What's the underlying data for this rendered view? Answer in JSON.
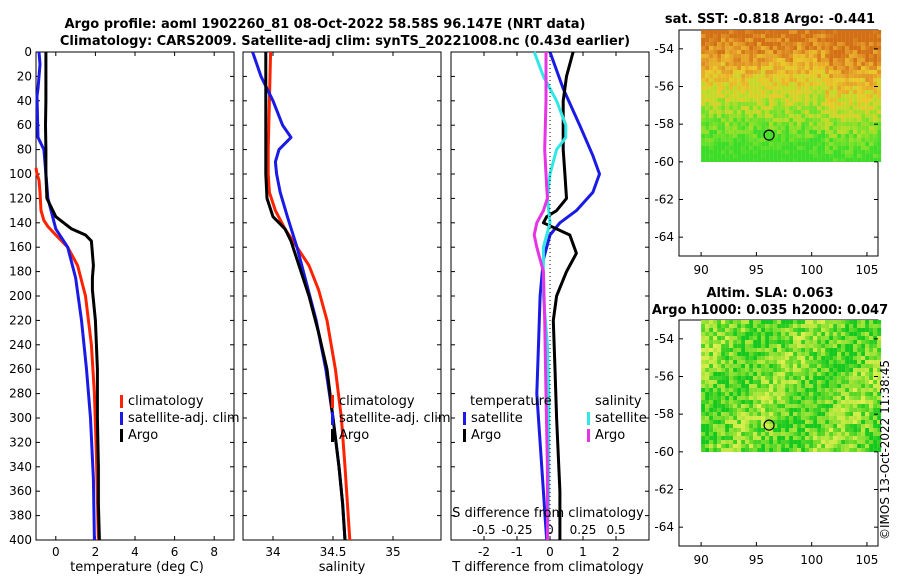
{
  "title": {
    "line1": "Argo profile: aoml 1902260_81 08-Oct-2022 58.58S 96.147E (NRT data)",
    "line2": "Climatology: CARS2009. Satellite-adj clim: synTS_20221008.nc (0.43d earlier)"
  },
  "colors": {
    "climatology": "#ff2200",
    "satellite": "#1a1ae6",
    "argo": "#000000",
    "salinity_sat": "#33e6e6",
    "salinity_argo": "#e633e6"
  },
  "chart_data": [
    {
      "id": "temperature",
      "type": "line",
      "xlabel": "temperature (deg C)",
      "ylabel": "",
      "xlim": [
        -1,
        9
      ],
      "ylim": [
        400,
        0
      ],
      "xticks": [
        "0",
        "2",
        "4",
        "6",
        "8"
      ],
      "xtick_values": [
        0,
        2,
        4,
        6,
        8
      ],
      "yticks": [
        "0",
        "20",
        "40",
        "60",
        "80",
        "100",
        "120",
        "140",
        "160",
        "180",
        "200",
        "220",
        "240",
        "260",
        "280",
        "300",
        "320",
        "340",
        "360",
        "380",
        "400"
      ],
      "legend": [
        "climatology",
        "satellite-adj. clim",
        "Argo"
      ],
      "series": [
        {
          "name": "climatology",
          "color": "#ff2200",
          "x": [
            -1,
            -0.95,
            -0.85,
            -0.8,
            -0.75,
            -0.6,
            -0.4,
            0.0,
            0.6,
            1.1,
            1.5,
            1.8,
            1.95,
            2.05,
            2.15
          ],
          "y": [
            95,
            100,
            105,
            115,
            130,
            138,
            143,
            150,
            160,
            175,
            200,
            240,
            280,
            330,
            400
          ]
        },
        {
          "name": "satellite-adj. clim",
          "color": "#1a1ae6",
          "x": [
            -0.85,
            -0.8,
            -0.85,
            -0.9,
            -0.95,
            -0.9,
            -0.6,
            -0.55,
            -0.5,
            -0.4,
            0.0,
            0.6,
            1.0,
            1.3,
            1.55,
            1.75,
            1.9,
            1.95
          ],
          "y": [
            0,
            10,
            20,
            30,
            36,
            70,
            80,
            90,
            100,
            120,
            145,
            160,
            185,
            220,
            260,
            300,
            350,
            400
          ]
        },
        {
          "name": "Argo",
          "color": "#000000",
          "x": [
            -0.5,
            -0.5,
            -0.5,
            -0.52,
            -0.5,
            -0.5,
            -0.45,
            0.0,
            0.8,
            1.5,
            1.8,
            1.85,
            1.9,
            1.85,
            1.85,
            2.0,
            2.05,
            2.1,
            2.1,
            2.15,
            2.15,
            2.2
          ],
          "y": [
            0,
            20,
            40,
            60,
            80,
            100,
            120,
            135,
            145,
            150,
            155,
            165,
            175,
            185,
            195,
            220,
            240,
            260,
            300,
            340,
            370,
            400
          ]
        }
      ]
    },
    {
      "id": "salinity",
      "type": "line",
      "xlabel": "salinity",
      "ylabel": "",
      "xlim": [
        33.75,
        35.4
      ],
      "ylim": [
        400,
        0
      ],
      "xticks": [
        "34",
        "34.5",
        "35"
      ],
      "xtick_values": [
        34,
        34.5,
        35
      ],
      "legend": [
        "climatology",
        "satellite-adj. clim",
        "Argo"
      ],
      "series": [
        {
          "name": "climatology",
          "color": "#ff2200",
          "x": [
            33.98,
            33.97,
            33.96,
            33.96,
            33.97,
            34.02,
            34.1,
            34.2,
            34.3,
            34.38,
            34.45,
            34.52,
            34.57,
            34.6,
            34.62,
            34.64
          ],
          "y": [
            0,
            40,
            80,
            100,
            115,
            130,
            145,
            160,
            175,
            195,
            220,
            260,
            300,
            340,
            370,
            400
          ]
        },
        {
          "name": "satellite-adj. clim",
          "color": "#1a1ae6",
          "x": [
            33.83,
            33.9,
            34.0,
            34.08,
            34.15,
            34.05,
            34.02,
            34.03,
            34.06,
            34.12,
            34.2,
            34.28,
            34.36,
            34.44,
            34.5,
            34.55,
            34.58,
            34.6
          ],
          "y": [
            0,
            20,
            40,
            60,
            70,
            80,
            90,
            100,
            115,
            135,
            160,
            190,
            220,
            260,
            300,
            340,
            370,
            400
          ]
        },
        {
          "name": "Argo",
          "color": "#000000",
          "x": [
            33.94,
            33.94,
            33.94,
            33.94,
            33.95,
            34.0,
            34.05,
            34.1,
            34.15,
            34.2,
            34.3,
            34.38,
            34.45,
            34.5,
            34.55,
            34.58,
            34.6
          ],
          "y": [
            0,
            40,
            80,
            100,
            120,
            135,
            140,
            145,
            155,
            170,
            200,
            230,
            260,
            300,
            340,
            370,
            400
          ]
        }
      ]
    },
    {
      "id": "difference",
      "type": "line",
      "xlabel": "T difference from climatology",
      "xlabel_top": "S difference from climatology",
      "xlim": [
        -3,
        3
      ],
      "s_xlim": [
        -0.75,
        0.75
      ],
      "ylim": [
        400,
        0
      ],
      "xticks": [
        "-2",
        "-1",
        "0",
        "1",
        "2"
      ],
      "xtick_values": [
        -2,
        -1,
        0,
        1,
        2
      ],
      "s_xticks": [
        "-0.5",
        "-0.25",
        "0",
        "0.25",
        "0.5"
      ],
      "s_xtick_values": [
        -0.5,
        -0.25,
        0,
        0.25,
        0.5
      ],
      "legend_left": [
        "temperature",
        "satellite",
        "Argo"
      ],
      "legend_right": [
        "salinity",
        "satellite",
        "Argo"
      ],
      "series": [
        {
          "name": "T satellite",
          "color": "#1a1ae6",
          "x": [
            0.0,
            0.4,
            0.9,
            1.3,
            1.5,
            1.3,
            0.8,
            0.3,
            0.0,
            -0.2,
            -0.3,
            -0.35,
            -0.4,
            -0.3,
            -0.2,
            -0.15,
            -0.1
          ],
          "y": [
            0,
            30,
            60,
            85,
            100,
            115,
            130,
            140,
            150,
            170,
            200,
            240,
            280,
            320,
            360,
            380,
            400
          ]
        },
        {
          "name": "T Argo",
          "color": "#000000",
          "x": [
            0.7,
            0.5,
            0.4,
            0.4,
            0.45,
            0.5,
            0.2,
            -0.1,
            -0.2,
            0.6,
            0.8,
            0.5,
            0.2,
            0.1,
            0.15,
            0.2,
            0.3,
            0.3
          ],
          "y": [
            0,
            20,
            40,
            80,
            100,
            120,
            130,
            135,
            140,
            150,
            165,
            180,
            200,
            220,
            260,
            300,
            360,
            400
          ]
        },
        {
          "name": "S satellite",
          "color": "#33e6e6",
          "x": [
            -0.12,
            -0.05,
            0.05,
            0.12,
            0.12,
            0.05,
            0.0,
            -0.02,
            0.0,
            -0.05,
            -0.05,
            -0.02,
            -0.01,
            -0.01,
            -0.01,
            -0.02
          ],
          "y": [
            0,
            20,
            40,
            60,
            70,
            80,
            100,
            120,
            140,
            160,
            200,
            240,
            280,
            320,
            360,
            400
          ]
        },
        {
          "name": "S Argo",
          "color": "#e633e6",
          "x": [
            -0.03,
            -0.03,
            -0.04,
            -0.03,
            -0.02,
            -0.05,
            -0.1,
            -0.12,
            -0.1,
            -0.05,
            -0.04,
            -0.03,
            -0.02,
            -0.02
          ],
          "y": [
            0,
            40,
            80,
            100,
            120,
            130,
            140,
            150,
            160,
            180,
            220,
            280,
            340,
            400
          ]
        }
      ]
    }
  ],
  "maps": {
    "sst": {
      "title": "sat. SST: -0.818 Argo: -0.441",
      "yticks": [
        "-54",
        "-56",
        "-58",
        "-60",
        "-62",
        "-64"
      ],
      "ytick_values": [
        -54,
        -56,
        -58,
        -60,
        -62,
        -64
      ],
      "xticks": [
        "90",
        "95",
        "100",
        "105"
      ],
      "xtick_values": [
        90,
        95,
        100,
        105
      ],
      "lat_range": [
        -53,
        -65
      ],
      "lon_range": [
        88,
        106
      ],
      "marker": {
        "lon": 96.147,
        "lat": -58.58
      }
    },
    "sla": {
      "title1": "Altim. SLA: 0.063",
      "title2": "Argo h1000: 0.035 h2000: 0.047",
      "yticks": [
        "-54",
        "-56",
        "-58",
        "-60",
        "-62",
        "-64"
      ],
      "ytick_values": [
        -54,
        -56,
        -58,
        -60,
        -62,
        -64
      ],
      "xticks": [
        "90",
        "95",
        "100",
        "105"
      ],
      "xtick_values": [
        90,
        95,
        100,
        105
      ],
      "lat_range": [
        -53,
        -65
      ],
      "lon_range": [
        88,
        106
      ],
      "marker": {
        "lon": 96.147,
        "lat": -58.58
      }
    }
  },
  "watermark": "©IMOS 13-Oct-2022 11:38:45"
}
